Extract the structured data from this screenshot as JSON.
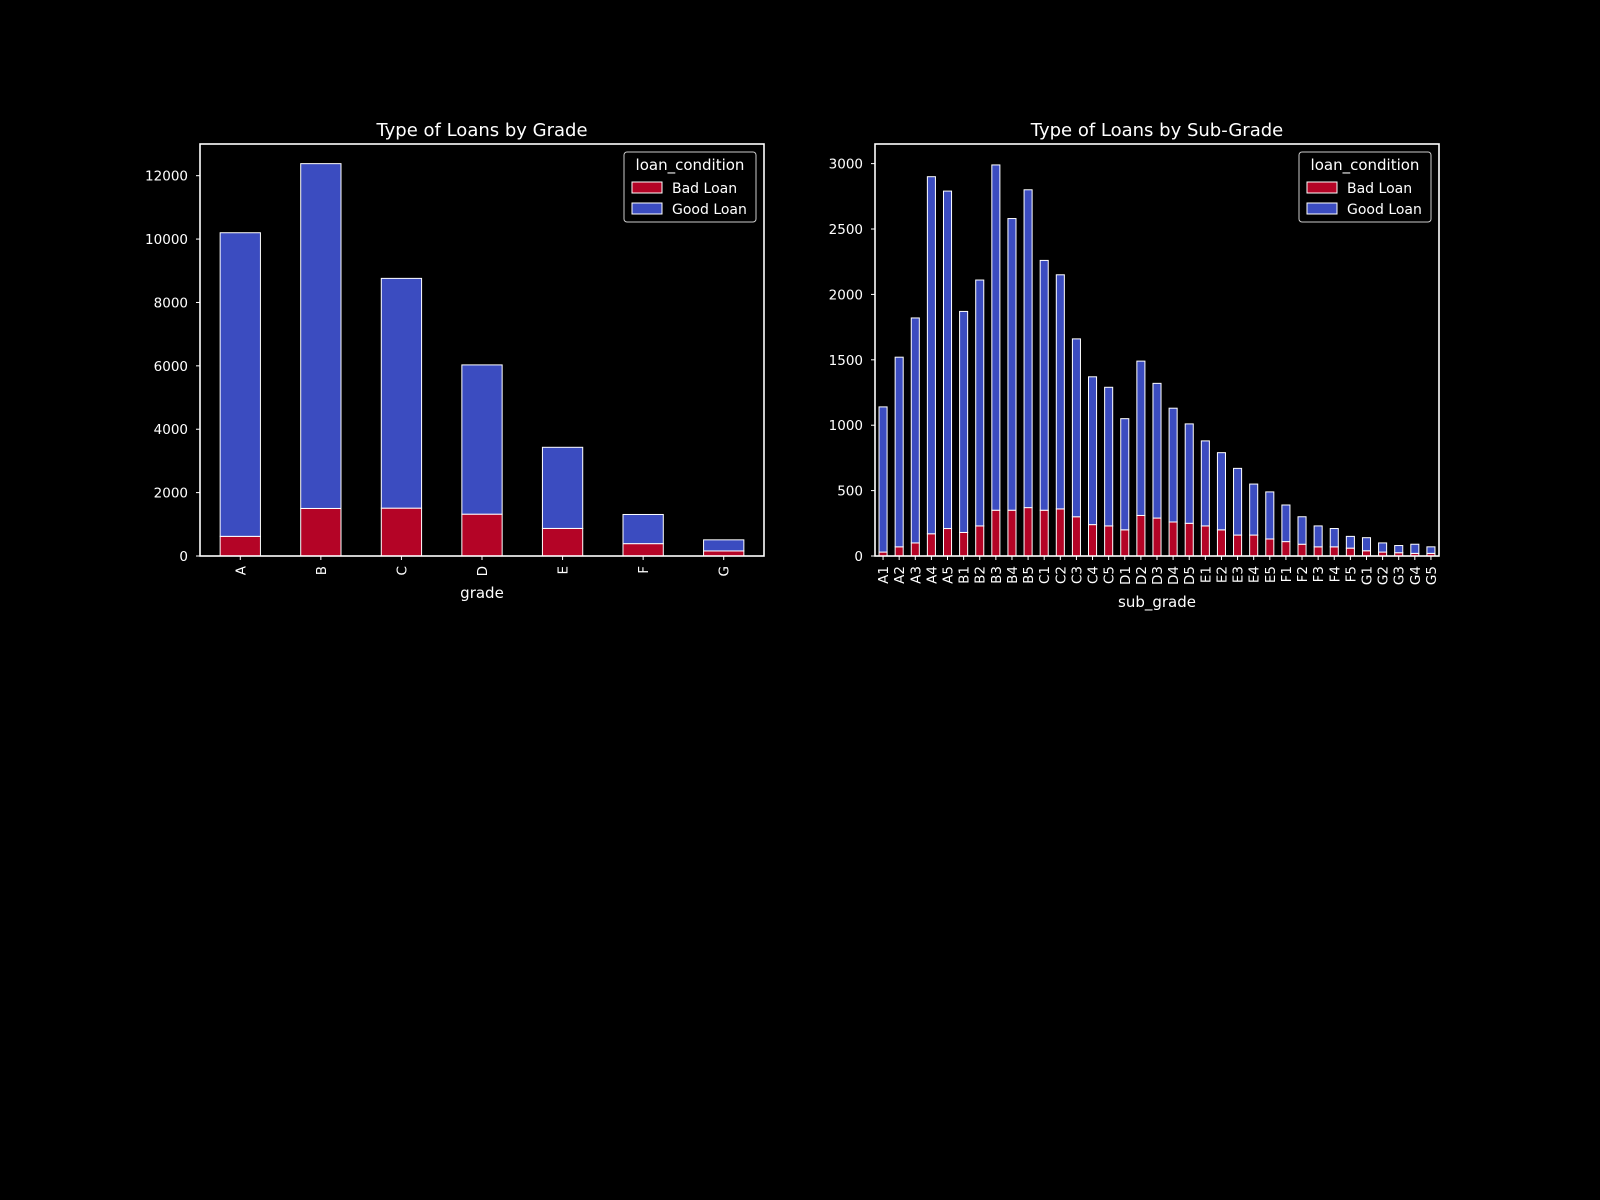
{
  "colors": {
    "background": "#000000",
    "bad": "#b40426",
    "good": "#3b4cc0",
    "edge": "#ffffff"
  },
  "chart_data": [
    {
      "type": "bar",
      "stacked": true,
      "title": "Type of Loans by Grade",
      "xlabel": "grade",
      "ylabel": "",
      "ylim": [
        0,
        13000
      ],
      "yticks": [
        0,
        2000,
        4000,
        6000,
        8000,
        10000,
        12000
      ],
      "grid": false,
      "legend_position": "top-right",
      "legend_title": "loan_condition",
      "categories": [
        "A",
        "B",
        "C",
        "D",
        "E",
        "F",
        "G"
      ],
      "series": [
        {
          "name": "Bad Loan",
          "color": "#b40426",
          "values": [
            620,
            1500,
            1510,
            1320,
            870,
            390,
            160
          ]
        },
        {
          "name": "Good Loan",
          "color": "#3b4cc0",
          "values": [
            9580,
            10880,
            7250,
            4710,
            2560,
            920,
            350
          ]
        }
      ]
    },
    {
      "type": "bar",
      "stacked": true,
      "title": "Type of Loans by Sub-Grade",
      "xlabel": "sub_grade",
      "ylabel": "",
      "ylim": [
        0,
        3150
      ],
      "yticks": [
        0,
        500,
        1000,
        1500,
        2000,
        2500,
        3000
      ],
      "grid": false,
      "legend_position": "top-right",
      "legend_title": "loan_condition",
      "categories": [
        "A1",
        "A2",
        "A3",
        "A4",
        "A5",
        "B1",
        "B2",
        "B3",
        "B4",
        "B5",
        "C1",
        "C2",
        "C3",
        "C4",
        "C5",
        "D1",
        "D2",
        "D3",
        "D4",
        "D5",
        "E1",
        "E2",
        "E3",
        "E4",
        "E5",
        "F1",
        "F2",
        "F3",
        "F4",
        "F5",
        "G1",
        "G2",
        "G3",
        "G4",
        "G5"
      ],
      "series": [
        {
          "name": "Bad Loan",
          "color": "#b40426",
          "values": [
            30,
            70,
            100,
            170,
            210,
            180,
            230,
            350,
            350,
            370,
            350,
            360,
            300,
            240,
            230,
            200,
            310,
            290,
            260,
            250,
            230,
            200,
            160,
            160,
            130,
            110,
            90,
            70,
            70,
            60,
            40,
            30,
            25,
            20,
            20
          ]
        },
        {
          "name": "Good Loan",
          "color": "#3b4cc0",
          "values": [
            1110,
            1450,
            1720,
            2730,
            2580,
            1690,
            1880,
            2640,
            2230,
            2430,
            1910,
            1790,
            1360,
            1130,
            1060,
            850,
            1180,
            1030,
            870,
            760,
            650,
            590,
            510,
            390,
            360,
            280,
            210,
            160,
            140,
            90,
            100,
            70,
            55,
            70,
            50
          ]
        }
      ]
    }
  ]
}
